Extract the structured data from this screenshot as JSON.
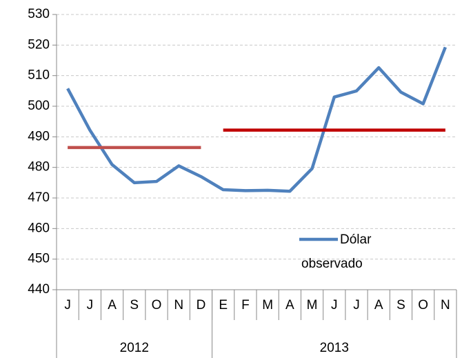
{
  "chart_data": {
    "type": "line",
    "categories": [
      "J",
      "J",
      "A",
      "S",
      "O",
      "N",
      "D",
      "E",
      "F",
      "M",
      "A",
      "M",
      "J",
      "J",
      "A",
      "S",
      "O",
      "N"
    ],
    "x_groups": [
      {
        "label": "2012",
        "count": 7
      },
      {
        "label": "2013",
        "count": 11
      }
    ],
    "series": [
      {
        "name": "Dólar observado",
        "color": "#4f81bd",
        "values": [
          505.8,
          492.2,
          480.9,
          475.0,
          475.4,
          480.5,
          477.0,
          472.7,
          472.4,
          472.5,
          472.2,
          479.6,
          503.0,
          505.0,
          512.6,
          504.6,
          500.8,
          519.3
        ]
      },
      {
        "color": "#c0504d",
        "values": [
          486.5,
          486.5,
          486.5,
          486.5,
          486.5,
          486.5,
          486.5,
          null,
          null,
          null,
          null,
          null,
          null,
          null,
          null,
          null,
          null,
          null
        ]
      },
      {
        "color": "#c00000",
        "values": [
          null,
          null,
          null,
          null,
          null,
          null,
          null,
          492.2,
          492.2,
          492.2,
          492.2,
          492.2,
          492.2,
          492.2,
          492.2,
          492.2,
          492.2,
          492.2
        ]
      }
    ],
    "ylim": [
      440,
      530
    ],
    "yticks": [
      440,
      450,
      460,
      470,
      480,
      490,
      500,
      510,
      520,
      530
    ],
    "grid": true
  }
}
